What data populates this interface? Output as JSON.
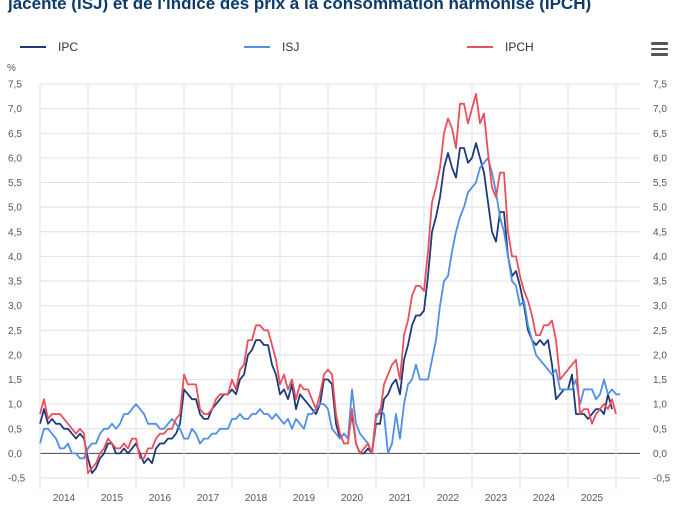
{
  "title": "jacente (ISJ) et de l'indice des prix à la consommation harmonisé (IPCH)",
  "menu_icon": "hamburger-menu-icon",
  "chart_data": {
    "type": "line",
    "ylabel": "%",
    "ylim": [
      -0.5,
      7.5
    ],
    "yticks": [
      "-0,5",
      "0,0",
      "0,5",
      "1,0",
      "1,5",
      "2,0",
      "2,5",
      "3,0",
      "3,5",
      "4,0",
      "4,5",
      "5,0",
      "5,5",
      "6,0",
      "6,5",
      "7,0",
      "7,5"
    ],
    "years": [
      "2014",
      "2015",
      "2016",
      "2017",
      "2018",
      "2019",
      "2020",
      "2021",
      "2022",
      "2023",
      "2024",
      "2025"
    ],
    "x_start": 2014.0,
    "grid": true,
    "legend_position": "top",
    "series": [
      {
        "name": "IPC",
        "color": "#1f3a7a",
        "values": [
          0.6,
          0.9,
          0.6,
          0.7,
          0.6,
          0.6,
          0.5,
          0.5,
          0.4,
          0.3,
          0.4,
          0.3,
          -0.1,
          -0.4,
          -0.3,
          -0.1,
          0.0,
          0.2,
          0.2,
          0.0,
          0.0,
          0.1,
          0.0,
          0.1,
          0.2,
          0.0,
          -0.2,
          -0.1,
          -0.2,
          0.1,
          0.2,
          0.2,
          0.3,
          0.3,
          0.4,
          0.6,
          1.3,
          1.2,
          1.1,
          1.1,
          0.8,
          0.7,
          0.7,
          0.9,
          1.0,
          1.1,
          1.2,
          1.2,
          1.3,
          1.2,
          1.5,
          1.6,
          2.0,
          2.1,
          2.3,
          2.3,
          2.2,
          2.2,
          1.8,
          1.6,
          1.2,
          1.3,
          1.1,
          1.4,
          0.9,
          1.2,
          1.1,
          1.0,
          0.9,
          0.8,
          1.0,
          1.5,
          1.5,
          1.4,
          0.6,
          0.3,
          0.4,
          0.3,
          0.8,
          0.2,
          0.0,
          0.0,
          0.1,
          0.0,
          0.6,
          0.6,
          1.1,
          1.2,
          1.4,
          1.5,
          1.2,
          1.9,
          2.2,
          2.6,
          2.8,
          2.8,
          2.9,
          3.6,
          4.5,
          4.8,
          5.2,
          5.8,
          6.1,
          5.8,
          5.6,
          6.2,
          6.2,
          5.9,
          6.0,
          6.3,
          6.0,
          5.7,
          5.1,
          4.5,
          4.3,
          4.9,
          4.9,
          4.0,
          3.6,
          3.7,
          3.4,
          3.0,
          2.5,
          2.3,
          2.2,
          2.3,
          2.2,
          2.3,
          1.8,
          1.1,
          1.2,
          1.3,
          1.3,
          1.6,
          0.8,
          0.8,
          0.8,
          0.7,
          0.8,
          0.9,
          0.9,
          0.8,
          1.2,
          0.9
        ]
      },
      {
        "name": "ISJ",
        "color": "#4f8fe6",
        "values": [
          0.2,
          0.5,
          0.5,
          0.4,
          0.3,
          0.1,
          0.1,
          0.2,
          0.0,
          0.0,
          -0.1,
          -0.1,
          0.1,
          0.2,
          0.2,
          0.4,
          0.5,
          0.5,
          0.6,
          0.5,
          0.6,
          0.8,
          0.8,
          0.9,
          1.0,
          0.9,
          0.8,
          0.6,
          0.6,
          0.6,
          0.5,
          0.5,
          0.6,
          0.7,
          0.6,
          0.5,
          0.3,
          0.3,
          0.5,
          0.4,
          0.2,
          0.3,
          0.3,
          0.4,
          0.4,
          0.5,
          0.5,
          0.5,
          0.7,
          0.7,
          0.8,
          0.7,
          0.7,
          0.8,
          0.8,
          0.9,
          0.8,
          0.8,
          0.7,
          0.8,
          0.7,
          0.6,
          0.7,
          0.5,
          0.7,
          0.6,
          0.5,
          0.8,
          0.8,
          0.9,
          1.0,
          1.0,
          0.9,
          0.5,
          0.4,
          0.3,
          0.4,
          0.3,
          1.3,
          0.6,
          0.4,
          0.3,
          0.2,
          0.0,
          0.7,
          0.9,
          0.8,
          0.0,
          0.2,
          0.8,
          0.3,
          1.0,
          1.4,
          1.5,
          1.8,
          1.5,
          1.5,
          1.5,
          1.9,
          2.3,
          3.0,
          3.5,
          3.6,
          4.1,
          4.5,
          4.8,
          5.0,
          5.3,
          5.4,
          5.5,
          5.8,
          5.9,
          6.0,
          5.7,
          5.3,
          4.8,
          4.5,
          4.0,
          3.5,
          3.4,
          3.0,
          3.1,
          2.6,
          2.3,
          2.0,
          1.9,
          1.8,
          1.7,
          1.6,
          1.7,
          1.3,
          1.3,
          1.3,
          1.3,
          1.5,
          1.0,
          1.3,
          1.3,
          1.3,
          1.1,
          1.2,
          1.5,
          1.2,
          1.3,
          1.2,
          1.2
        ]
      },
      {
        "name": "IPCH",
        "color": "#e8505b",
        "values": [
          0.8,
          1.1,
          0.7,
          0.8,
          0.8,
          0.8,
          0.7,
          0.6,
          0.5,
          0.4,
          0.5,
          0.4,
          -0.4,
          -0.3,
          -0.2,
          0.0,
          0.1,
          0.3,
          0.2,
          0.1,
          0.1,
          0.2,
          0.1,
          0.3,
          0.3,
          -0.1,
          -0.1,
          0.1,
          0.1,
          0.3,
          0.4,
          0.4,
          0.5,
          0.5,
          0.7,
          0.8,
          1.6,
          1.4,
          1.4,
          1.4,
          0.9,
          0.8,
          0.8,
          0.9,
          1.1,
          1.2,
          1.2,
          1.2,
          1.5,
          1.3,
          1.7,
          1.8,
          2.3,
          2.3,
          2.6,
          2.6,
          2.5,
          2.5,
          2.2,
          1.9,
          1.4,
          1.6,
          1.3,
          1.5,
          1.1,
          1.4,
          1.3,
          1.3,
          1.1,
          0.9,
          1.2,
          1.6,
          1.7,
          1.6,
          0.8,
          0.4,
          0.2,
          0.2,
          0.9,
          0.2,
          0.0,
          0.1,
          0.2,
          0.0,
          0.8,
          0.8,
          1.4,
          1.6,
          1.8,
          1.9,
          1.5,
          2.4,
          2.7,
          3.2,
          3.4,
          3.4,
          3.3,
          4.1,
          5.1,
          5.4,
          5.8,
          6.5,
          6.8,
          6.6,
          6.2,
          7.1,
          7.1,
          6.7,
          7.0,
          7.3,
          6.7,
          6.9,
          6.1,
          5.4,
          5.2,
          5.7,
          5.7,
          4.5,
          4.0,
          4.0,
          3.6,
          3.3,
          3.1,
          2.8,
          2.4,
          2.4,
          2.6,
          2.6,
          2.7,
          2.3,
          1.5,
          1.6,
          1.7,
          1.8,
          1.9,
          0.8,
          0.9,
          0.9,
          0.6,
          0.8,
          0.9,
          1.0,
          0.9,
          1.1,
          0.8
        ]
      }
    ]
  }
}
